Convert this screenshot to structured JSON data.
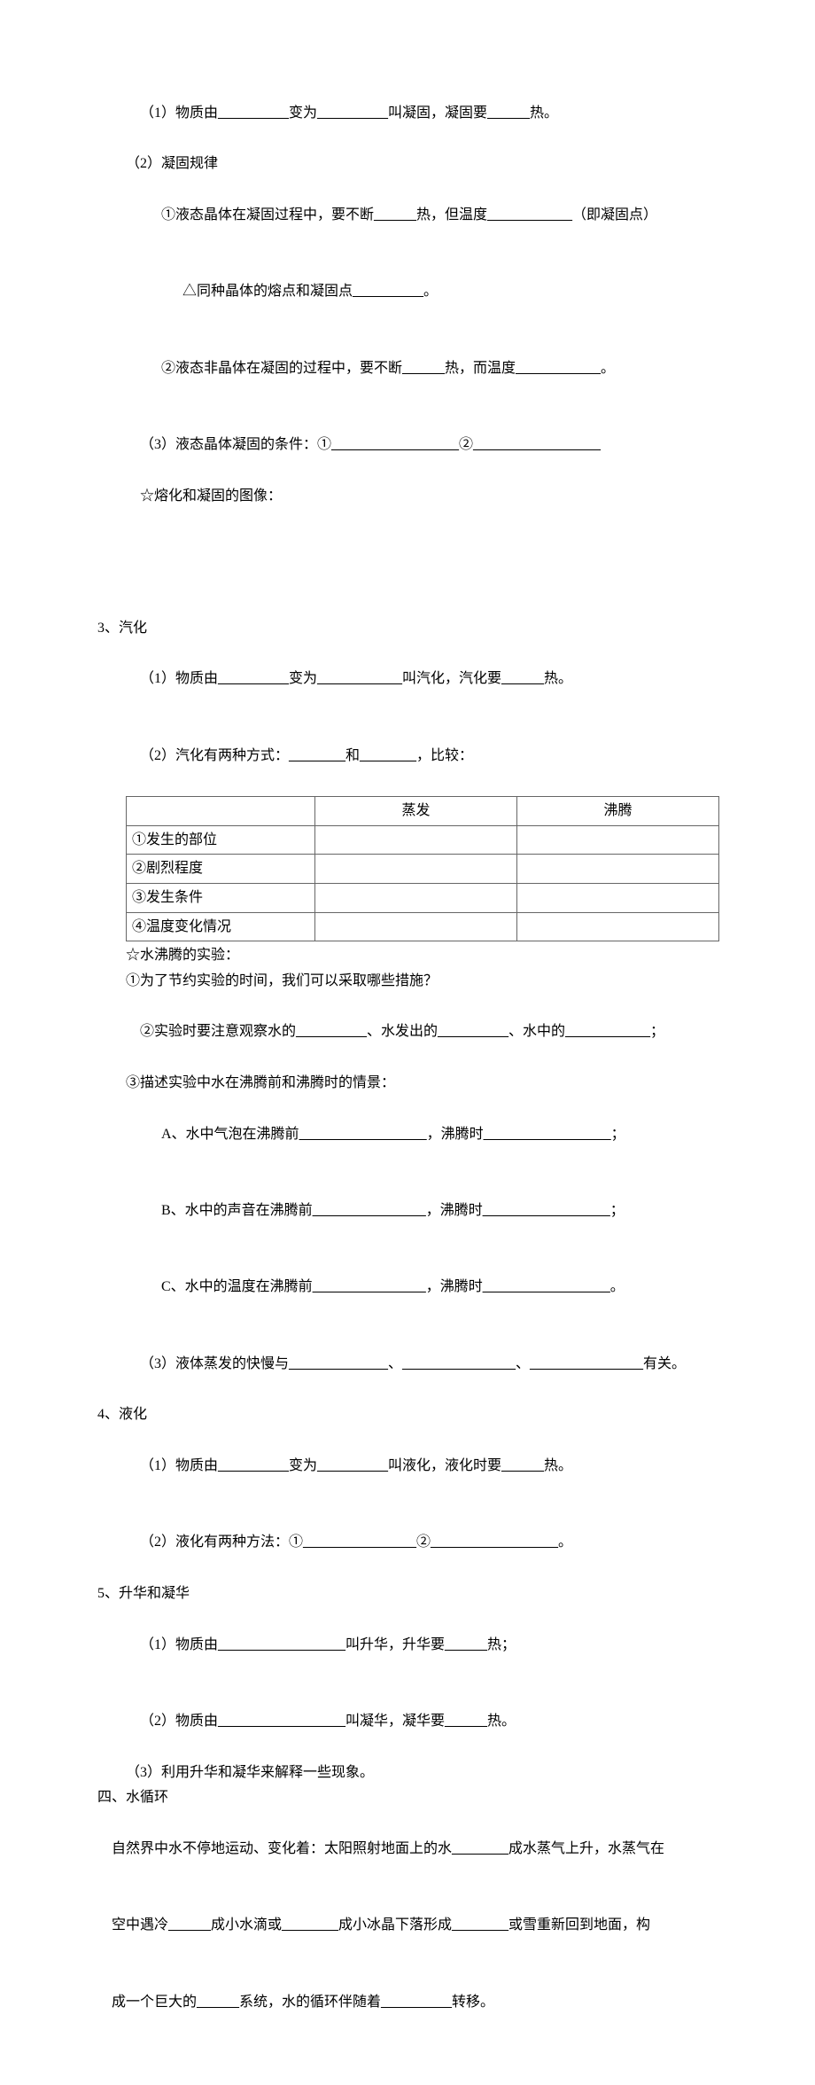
{
  "blank6": "______",
  "blank8": "________",
  "blank10": "__________",
  "blank12": "____________",
  "blank14": "______________",
  "blank16": "________________",
  "blank18": "__________________",
  "sec2": {
    "l1a": "（1）物质由",
    "l1b": "变为",
    "l1c": "叫凝固，凝固要",
    "l1d": "热。",
    "l2": "（2）凝固规律",
    "l3a": "①液态晶体在凝固过程中，要不断",
    "l3b": "热，但温度",
    "l3c": "（即凝固点）",
    "l4a": "△同种晶体的熔点和凝固点",
    "l4b": "。",
    "l5a": "②液态非晶体在凝固的过程中，要不断",
    "l5b": "热，而温度",
    "l5c": "。",
    "l6a": "（3）液态晶体凝固的条件：①",
    "l6b": "②",
    "l7": "☆熔化和凝固的图像："
  },
  "sec3": {
    "title": "3、汽化",
    "l1a": "（1）物质由",
    "l1b": "变为",
    "l1c": "叫汽化，汽化要",
    "l1d": "热。",
    "l2a": "（2）汽化有两种方式：",
    "l2b": "和",
    "l2c": "，比较：",
    "table": {
      "head_empty": "",
      "head_a": "蒸发",
      "head_b": "沸腾",
      "r1": "①发生的部位",
      "r2": "②剧烈程度",
      "r3": "③发生条件",
      "r4": "④温度变化情况"
    },
    "l3": "☆水沸腾的实验：",
    "l4": "①为了节约实验的时间，我们可以采取哪些措施？",
    "l5a": "②实验时要注意观察水的",
    "l5b": "、水发出的",
    "l5c": "、水中的",
    "l5d": "；",
    "l6": "③描述实验中水在沸腾前和沸腾时的情景：",
    "l7a": "A、水中气泡在沸腾前",
    "l7b": "，沸腾时",
    "l7c": "；",
    "l8a": "B、水中的声音在沸腾前",
    "l8b": "，沸腾时",
    "l8c": "；",
    "l9a": "C、水中的温度在沸腾前",
    "l9b": "，沸腾时",
    "l9c": "。",
    "l10a": "（3）液体蒸发的快慢与",
    "l10b": "、",
    "l10c": "、",
    "l10d": "有关。"
  },
  "sec4": {
    "title": "4、液化",
    "l1a": "（1）物质由",
    "l1b": "变为",
    "l1c": "叫液化，液化时要",
    "l1d": "热。",
    "l2a": "（2）液化有两种方法：①",
    "l2b": "②",
    "l2c": "。"
  },
  "sec5": {
    "title": "5、升华和凝华",
    "l1a": "（1）物质由",
    "l1b": "叫升华，升华要",
    "l1c": "热；",
    "l2a": "（2）物质由",
    "l2b": "叫凝华，凝华要",
    "l2c": "热。",
    "l3": "（3）利用升华和凝华来解释一些现象。"
  },
  "sec6": {
    "title": "四、水循环",
    "l1a": "自然界中水不停地运动、变化着：太阳照射地面上的水",
    "l1b": "成水蒸气上升，水蒸气在",
    "l2a": "空中遇冷",
    "l2b": "成小水滴或",
    "l2c": "成小冰晶下落形成",
    "l2d": "或雪重新回到地面，构",
    "l3a": "成一个巨大的",
    "l3b": "系统，水的循环伴随着",
    "l3c": "转移。"
  }
}
